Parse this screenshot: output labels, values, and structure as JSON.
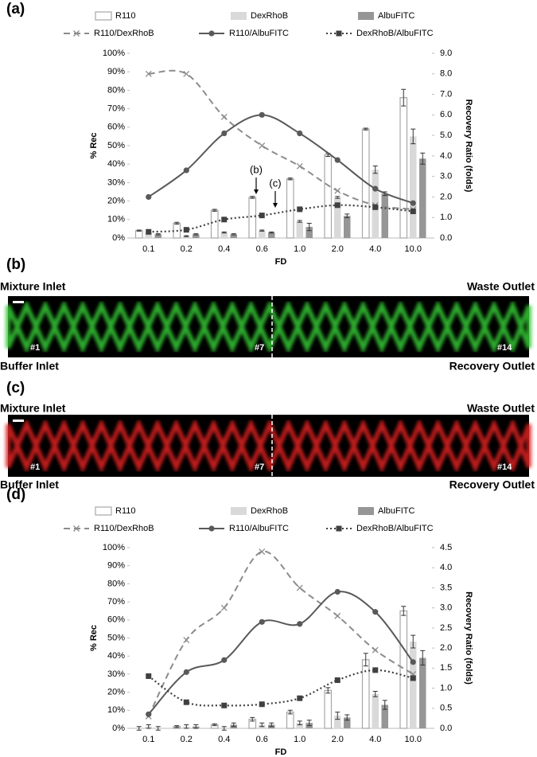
{
  "panel_labels": [
    "(a)",
    "(b)",
    "(c)",
    "(d)"
  ],
  "chart_data": [
    {
      "type": "bar-line",
      "categories": [
        "0.1",
        "0.2",
        "0.4",
        "0.6",
        "1.0",
        "2.0",
        "4.0",
        "10.0"
      ],
      "xlabel": "FD",
      "ylabel": "% Rec",
      "y2label": "Recovery Ratio (folds)",
      "ylim": [
        0,
        100
      ],
      "yticks": [
        {
          "value": 0,
          "label": "0%"
        },
        {
          "value": 10,
          "label": "10%"
        },
        {
          "value": 20,
          "label": "20%"
        },
        {
          "value": 30,
          "label": "30%"
        },
        {
          "value": 40,
          "label": "40%"
        },
        {
          "value": 50,
          "label": "50%"
        },
        {
          "value": 60,
          "label": "60%"
        },
        {
          "value": 70,
          "label": "70%"
        },
        {
          "value": 80,
          "label": "80%"
        },
        {
          "value": 90,
          "label": "90%"
        },
        {
          "value": 100,
          "label": "100%"
        }
      ],
      "y2lim": [
        0,
        9
      ],
      "y2ticks": [
        {
          "value": 0,
          "label": "0.0"
        },
        {
          "value": 1,
          "label": "1.0"
        },
        {
          "value": 2,
          "label": "2.0"
        },
        {
          "value": 3,
          "label": "3.0"
        },
        {
          "value": 4,
          "label": "4.0"
        },
        {
          "value": 5,
          "label": "5.0"
        },
        {
          "value": 6,
          "label": "6.0"
        },
        {
          "value": 7,
          "label": "7.0"
        },
        {
          "value": 8,
          "label": "8.0"
        },
        {
          "value": 9,
          "label": "9.0"
        }
      ],
      "annotations": [
        "(b)",
        "(c)"
      ],
      "series": [
        {
          "name": "R110",
          "kind": "bar",
          "color": "#ffffff",
          "values": [
            4,
            8,
            15,
            22,
            32,
            45,
            59,
            76
          ],
          "errors": [
            0.3,
            0.5,
            0.5,
            0.5,
            0.5,
            0.8,
            0.5,
            4.5
          ]
        },
        {
          "name": "DexRhoB",
          "kind": "bar",
          "color": "#d9d9d9",
          "values": [
            3,
            1,
            3,
            4,
            9,
            22,
            37,
            55
          ],
          "errors": [
            0.3,
            0.3,
            0.3,
            0.3,
            0.5,
            0.5,
            2,
            4
          ]
        },
        {
          "name": "AlbuFITC",
          "kind": "bar",
          "color": "#969696",
          "values": [
            2,
            2,
            2,
            3,
            6,
            12,
            24,
            43
          ],
          "errors": [
            0.3,
            0.3,
            0.3,
            0.3,
            2,
            1,
            1,
            3
          ]
        },
        {
          "name": "R110/DexRhoB",
          "kind": "line",
          "axis": "y2",
          "color": "#8c8c8c",
          "style": "dashed",
          "marker": "x",
          "values": [
            8.0,
            8.0,
            5.9,
            4.5,
            3.5,
            2.3,
            1.6,
            1.4
          ]
        },
        {
          "name": "R110/AlbuFITC",
          "kind": "line",
          "axis": "y2",
          "color": "#595959",
          "style": "solid",
          "marker": "circle",
          "values": [
            2.0,
            3.3,
            5.1,
            6.0,
            5.1,
            3.8,
            2.4,
            1.7
          ]
        },
        {
          "name": "DexRhoB/AlbuFITC",
          "kind": "line",
          "axis": "y2",
          "color": "#404040",
          "style": "dotted",
          "marker": "square",
          "values": [
            0.3,
            0.4,
            0.9,
            1.1,
            1.4,
            1.6,
            1.5,
            1.3
          ]
        }
      ]
    },
    {
      "type": "bar-line",
      "categories": [
        "0.1",
        "0.2",
        "0.4",
        "0.6",
        "1.0",
        "2.0",
        "4.0",
        "10.0"
      ],
      "xlabel": "FD",
      "ylabel": "% Rec",
      "y2label": "Recovery Ratio (folds)",
      "ylim": [
        0,
        100
      ],
      "yticks": [
        {
          "value": 0,
          "label": "0%"
        },
        {
          "value": 10,
          "label": "10%"
        },
        {
          "value": 20,
          "label": "20%"
        },
        {
          "value": 30,
          "label": "30%"
        },
        {
          "value": 40,
          "label": "40%"
        },
        {
          "value": 50,
          "label": "50%"
        },
        {
          "value": 60,
          "label": "60%"
        },
        {
          "value": 70,
          "label": "70%"
        },
        {
          "value": 80,
          "label": "80%"
        },
        {
          "value": 90,
          "label": "90%"
        },
        {
          "value": 100,
          "label": "100%"
        }
      ],
      "y2lim": [
        0,
        4.5
      ],
      "y2ticks": [
        {
          "value": 0,
          "label": "0.0"
        },
        {
          "value": 0.5,
          "label": "0.5"
        },
        {
          "value": 1,
          "label": "1.0"
        },
        {
          "value": 1.5,
          "label": "1.5"
        },
        {
          "value": 2,
          "label": "2.0"
        },
        {
          "value": 2.5,
          "label": "2.5"
        },
        {
          "value": 3,
          "label": "3.0"
        },
        {
          "value": 3.5,
          "label": "3.5"
        },
        {
          "value": 4,
          "label": "4.0"
        },
        {
          "value": 4.5,
          "label": "4.5"
        }
      ],
      "series": [
        {
          "name": "R110",
          "kind": "bar",
          "color": "#ffffff",
          "values": [
            0,
            1,
            2,
            5,
            9,
            21,
            38,
            65
          ],
          "errors": [
            1,
            0.5,
            0.5,
            1,
            1,
            1.5,
            3.5,
            2.5
          ]
        },
        {
          "name": "DexRhoB",
          "kind": "bar",
          "color": "#d9d9d9",
          "values": [
            1,
            1,
            0,
            2,
            3,
            7,
            19,
            48
          ],
          "errors": [
            1,
            1,
            1,
            1,
            1,
            2,
            1.5,
            3.5
          ]
        },
        {
          "name": "AlbuFITC",
          "kind": "bar",
          "color": "#969696",
          "values": [
            0,
            1,
            2,
            2,
            3,
            6,
            13,
            39
          ],
          "errors": [
            1,
            1,
            1,
            1,
            1.5,
            1.5,
            2.5,
            4
          ]
        },
        {
          "name": "R110/DexRhoB",
          "kind": "line",
          "axis": "y2",
          "color": "#8c8c8c",
          "style": "dashed",
          "marker": "x",
          "values": [
            0.3,
            2.2,
            3.0,
            4.4,
            3.5,
            2.8,
            1.95,
            1.35
          ]
        },
        {
          "name": "R110/AlbuFITC",
          "kind": "line",
          "axis": "y2",
          "color": "#595959",
          "style": "solid",
          "marker": "circle",
          "values": [
            0.35,
            1.4,
            1.7,
            2.65,
            2.6,
            3.4,
            2.9,
            1.65
          ]
        },
        {
          "name": "DexRhoB/AlbuFITC",
          "kind": "line",
          "axis": "y2",
          "color": "#404040",
          "style": "dotted",
          "marker": "square",
          "values": [
            1.3,
            0.65,
            0.57,
            0.6,
            0.75,
            1.2,
            1.45,
            1.25
          ]
        }
      ]
    }
  ],
  "images": [
    {
      "top_left": "Mixture Inlet",
      "top_right": "Waste Outlet",
      "bottom_left": "Buffer Inlet",
      "bottom_right": "Recovery Outlet",
      "markers": [
        "#1",
        "#7",
        "#14"
      ],
      "color": "#35c935"
    },
    {
      "top_left": "Mixture Inlet",
      "top_right": "Waste Outlet",
      "bottom_left": "Buffer Inlet",
      "bottom_right": "Recovery Outlet",
      "markers": [
        "#1",
        "#7",
        "#14"
      ],
      "color": "#e02020"
    }
  ]
}
